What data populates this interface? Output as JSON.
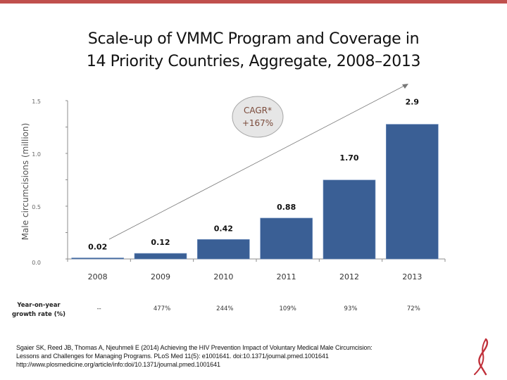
{
  "slide": {
    "title_line1": "Scale-up of VMMC Program and Coverage in",
    "title_line2": "14 Priority Countries, Aggregate, 2008–2013",
    "accent_color": "#c0504d",
    "ribbon_icon": "red-ribbon-icon"
  },
  "chart_data": {
    "type": "bar",
    "title": "Scale-up of VMMC Program and Coverage in 14 Priority Countries, Aggregate, 2008–2013",
    "xlabel": "",
    "ylabel": "Male circumcisions (million)",
    "categories": [
      "2008",
      "2009",
      "2010",
      "2011",
      "2012",
      "2013"
    ],
    "values": [
      0.02,
      0.12,
      0.42,
      0.88,
      1.7,
      2.9
    ],
    "value_labels": [
      "0.02",
      "0.12",
      "0.42",
      "0.88",
      "1.70",
      "2.9"
    ],
    "y_tick_labels": [
      "0.0",
      "0.5",
      "1.0",
      "1.5"
    ],
    "ylim": [
      0,
      1.5
    ],
    "bar_color": "#3a5f95",
    "grid": false,
    "annotation": {
      "shape": "ellipse",
      "line1": "CAGR*",
      "line2": "+167%",
      "fill": "#e6e6e6"
    },
    "trend_arrow": {
      "from_category": "2008",
      "to_category": "2013",
      "color": "#777777"
    },
    "growth_row": {
      "label_line1": "Year-on-year",
      "label_line2": "growth rate (%)",
      "values": [
        "--",
        "477%",
        "244%",
        "109%",
        "93%",
        "72%"
      ]
    }
  },
  "citation": {
    "line1": "Sgaier SK, Reed JB, Thomas A, Njeuhmeli E (2014) Achieving the HIV Prevention Impact of Voluntary Medical Male Circumcision:",
    "line2": "Lessons and Challenges for Managing Programs. PLoS Med 11(5): e1001641. doi:10.1371/journal.pmed.1001641",
    "line3": "http://www.plosmedicine.org/article/info:doi/10.1371/journal.pmed.1001641"
  }
}
